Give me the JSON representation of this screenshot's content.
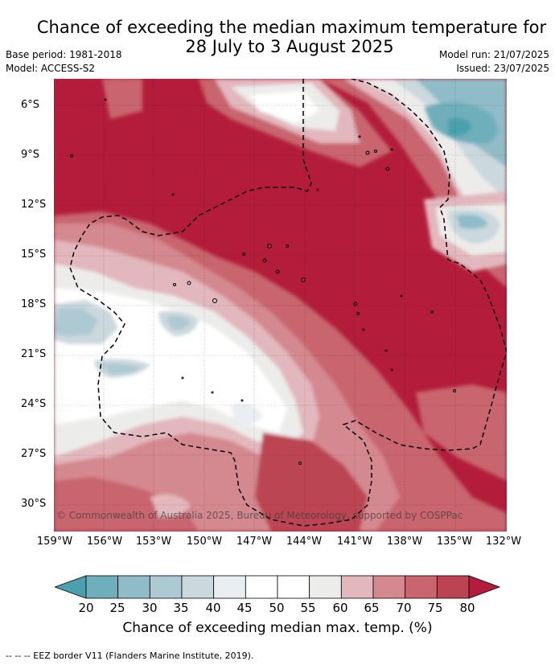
{
  "title_line1": "Chance of exceeding the median maximum temperature for",
  "title_line2": "28 July to 3 August 2025",
  "meta": {
    "base_period": "Base period: 1981-2018",
    "model": "Model: ACCESS-S2",
    "model_run": "Model run: 21/07/2025",
    "issued": "Issued: 23/07/2025"
  },
  "map": {
    "lat_ticks": [
      "6°S",
      "9°S",
      "12°S",
      "15°S",
      "18°S",
      "21°S",
      "24°S",
      "27°S",
      "30°S"
    ],
    "lon_ticks": [
      "159°W",
      "156°W",
      "153°W",
      "150°W",
      "147°W",
      "144°W",
      "141°W",
      "138°W",
      "135°W",
      "132°W"
    ],
    "credit": "© Commonwealth of Australia 2025, Bureau of Meteorology, supported by COSPPac",
    "extent": {
      "lon_west": -159,
      "lon_east": -132,
      "lat_north": -4.4,
      "lat_south": -31.4
    }
  },
  "colorbar": {
    "ticks": [
      "20",
      "25",
      "30",
      "35",
      "40",
      "45",
      "50",
      "55",
      "60",
      "65",
      "70",
      "75",
      "80"
    ],
    "label": "Chance of exceeding median max. temp. (%)",
    "colors": [
      "#4aa1ad",
      "#6eafbb",
      "#8fbcc7",
      "#adc9d1",
      "#cbd8de",
      "#e8eef2",
      "#ffffff",
      "#ffffff",
      "#ececeb",
      "#e2b7bd",
      "#d4888f",
      "#c8656e",
      "#bc4452",
      "#b31d3b"
    ]
  },
  "footnote": "--  --  -- EEZ border V11 (Flanders Marine Institute, 2019)."
}
